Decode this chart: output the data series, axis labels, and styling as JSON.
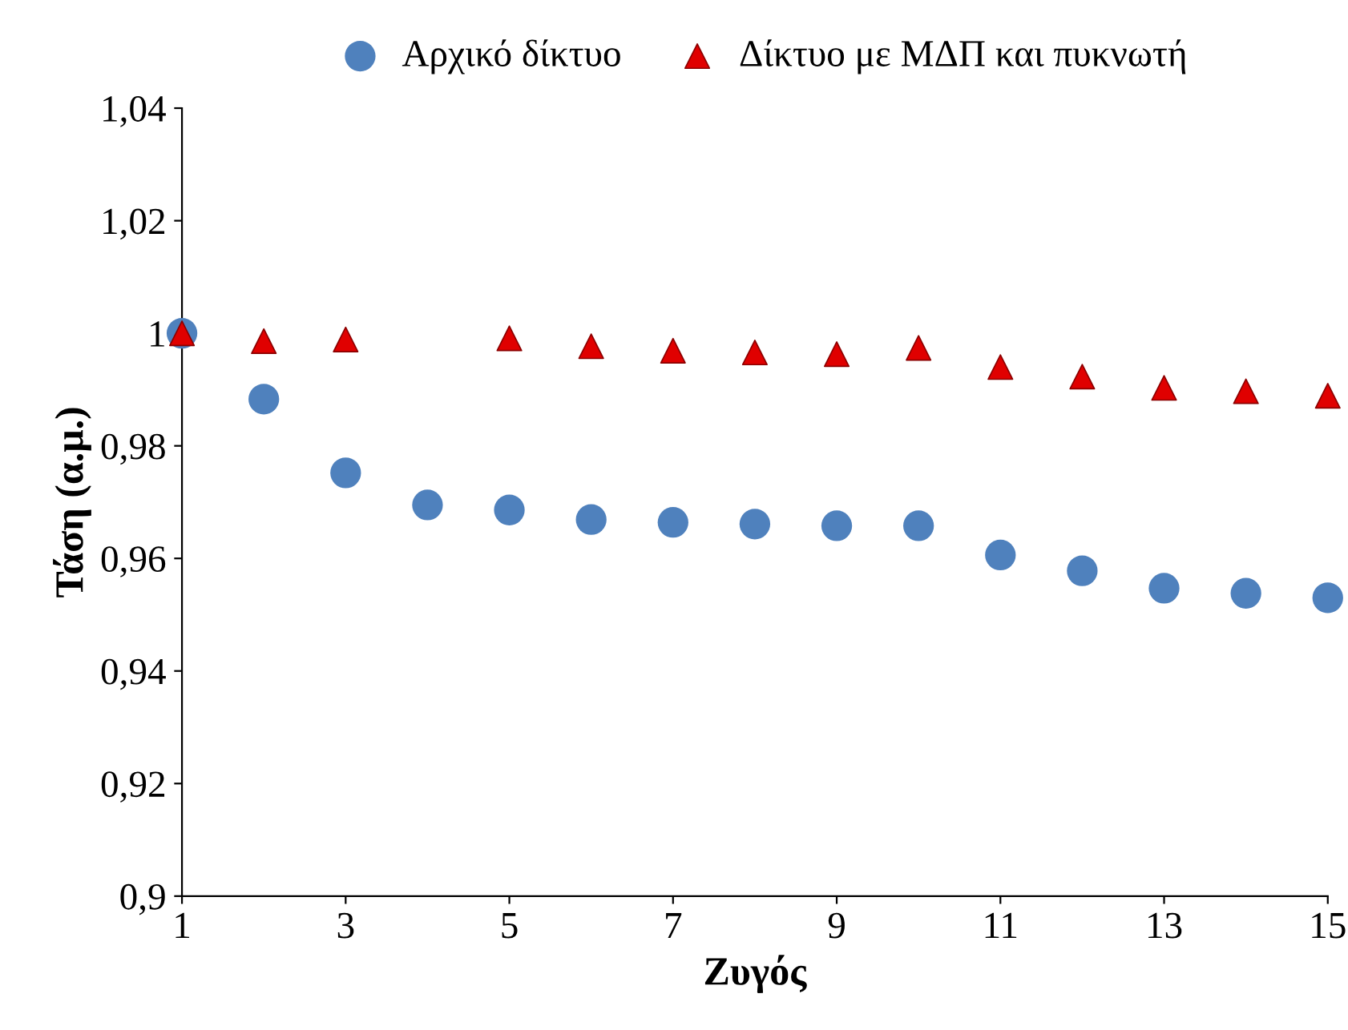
{
  "chart_data": {
    "type": "scatter",
    "xlabel": "Ζυγός",
    "ylabel": "Τάση (α.μ.)",
    "x": [
      1,
      2,
      3,
      4,
      5,
      6,
      7,
      8,
      9,
      10,
      11,
      12,
      13,
      14,
      15
    ],
    "series": [
      {
        "name": "Αρχικό δίκτυο",
        "color": "#4f81bd",
        "marker": "circle",
        "values": [
          1.0,
          0.9883,
          0.9752,
          0.9695,
          0.9686,
          0.9669,
          0.9664,
          0.9661,
          0.9658,
          0.9658,
          0.9606,
          0.9578,
          0.9547,
          0.9538,
          0.953
        ]
      },
      {
        "name": "Δίκτυο με ΜΔΠ και πυκνωτή",
        "color": "#e00000",
        "marker": "triangle",
        "values": [
          1.0,
          0.9986,
          0.9989,
          null,
          0.9991,
          0.9977,
          0.9969,
          0.9966,
          0.9963,
          0.9974,
          0.994,
          0.9923,
          0.9903,
          0.9897,
          0.9889
        ]
      }
    ],
    "xlim": [
      1,
      15
    ],
    "xticks": [
      1,
      3,
      5,
      7,
      9,
      11,
      13,
      15
    ],
    "ylim": [
      0.9,
      1.04
    ],
    "yticks": [
      {
        "value": 0.9,
        "label": "0,9"
      },
      {
        "value": 0.92,
        "label": "0,92"
      },
      {
        "value": 0.94,
        "label": "0,94"
      },
      {
        "value": 0.96,
        "label": "0,96"
      },
      {
        "value": 0.98,
        "label": "0,98"
      },
      {
        "value": 1,
        "label": "1"
      },
      {
        "value": 1.02,
        "label": "1,02"
      },
      {
        "value": 1.04,
        "label": "1,04"
      }
    ],
    "grid": false,
    "legend": "top"
  }
}
